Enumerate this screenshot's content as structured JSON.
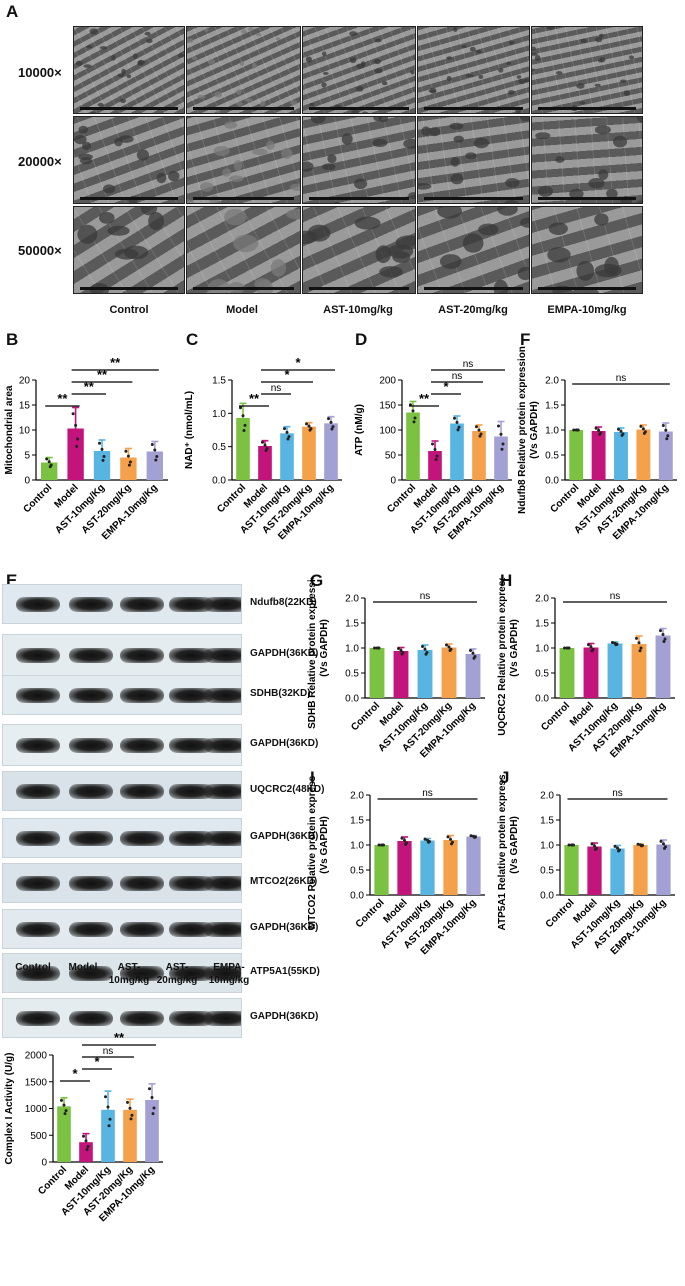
{
  "panelA": {
    "letter": "A",
    "magnifications": [
      "10000×",
      "20000×",
      "50000×"
    ],
    "groups": [
      "Control",
      "Model",
      "AST-10mg/kg",
      "AST-20mg/kg",
      "EMPA-10mg/kg"
    ]
  },
  "panelE": {
    "letter": "E",
    "bands": [
      "Ndufb8(22KD)",
      "GAPDH(36KD)",
      "SDHB(32KD)",
      "GAPDH(36KD)",
      "UQCRC2(48KD)",
      "GAPDH(36KD)",
      "MTCO2(26KD)",
      "GAPDH(36KD)",
      "ATP5A1(55KD)",
      "GAPDH(36KD)"
    ],
    "lanes": [
      "Control",
      "Model",
      "AST-\n10mg/kg",
      "AST-\n20mg/kg",
      "EMPA-\n10mg/kg"
    ]
  },
  "colors": {
    "Control": "#7cc242",
    "Model": "#c2147a",
    "AST-10mg/Kg": "#58b4e0",
    "AST-20mg/Kg": "#f5a04a",
    "EMPA-10mg/Kg": "#a3a0d3"
  },
  "chart_data": [
    {
      "panel": "B",
      "type": "bar",
      "categories": [
        "Control",
        "Model",
        "AST-10mg/Kg",
        "AST-20mg/Kg",
        "EMPA-10mg/Kg"
      ],
      "values": [
        3.5,
        10.3,
        5.8,
        4.5,
        5.7
      ],
      "errors": [
        1.0,
        4.2,
        2.2,
        1.8,
        2.0
      ],
      "ylabel": "Mitochondrial area",
      "ylim": [
        0,
        20
      ],
      "yticks": [
        0,
        5,
        10,
        15,
        20
      ],
      "significance": [
        {
          "from": 0,
          "to": 1,
          "label": "**"
        },
        {
          "from": 1,
          "to": 2,
          "label": "**"
        },
        {
          "from": 1,
          "to": 3,
          "label": "**"
        },
        {
          "from": 1,
          "to": 4,
          "label": "**"
        }
      ]
    },
    {
      "panel": "C",
      "type": "bar",
      "categories": [
        "Control",
        "Model",
        "AST-10mg/Kg",
        "AST-20mg/Kg",
        "EMPA-10mg/Kg"
      ],
      "values": [
        0.93,
        0.51,
        0.7,
        0.8,
        0.85
      ],
      "errors": [
        0.22,
        0.08,
        0.1,
        0.06,
        0.1
      ],
      "ylabel": "NAD⁺ (nmol/mL)",
      "ylim": [
        0,
        1.5
      ],
      "yticks": [
        0.0,
        0.5,
        1.0,
        1.5
      ],
      "significance": [
        {
          "from": 0,
          "to": 1,
          "label": "**"
        },
        {
          "from": 1,
          "to": 2,
          "label": "ns"
        },
        {
          "from": 1,
          "to": 3,
          "label": "*"
        },
        {
          "from": 1,
          "to": 4,
          "label": "*"
        }
      ]
    },
    {
      "panel": "D",
      "type": "bar",
      "categories": [
        "Control",
        "Model",
        "AST-10mg/Kg",
        "AST-20mg/Kg",
        "EMPA-10mg/Kg"
      ],
      "values": [
        135,
        58,
        113,
        98,
        87
      ],
      "errors": [
        22,
        20,
        15,
        12,
        30
      ],
      "ylabel": "ATP (nM/g)",
      "ylim": [
        0,
        200
      ],
      "yticks": [
        0,
        50,
        100,
        150,
        200
      ],
      "significance": [
        {
          "from": 0,
          "to": 1,
          "label": "**"
        },
        {
          "from": 1,
          "to": 2,
          "label": "*"
        },
        {
          "from": 1,
          "to": 3,
          "label": "ns"
        },
        {
          "from": 1,
          "to": 4,
          "label": "ns"
        }
      ]
    },
    {
      "panel": "F",
      "type": "bar",
      "categories": [
        "Control",
        "Model",
        "AST-10mg/Kg",
        "AST-20mg/Kg",
        "EMPA-10mg/Kg"
      ],
      "values": [
        1.0,
        0.98,
        0.96,
        1.01,
        0.97
      ],
      "errors": [
        0.0,
        0.08,
        0.08,
        0.09,
        0.17
      ],
      "ylabel": "Ndufb8 Relative protein expression (Vs GAPDH)",
      "ylim": [
        0,
        2.0
      ],
      "yticks": [
        0.0,
        0.5,
        1.0,
        1.5,
        2.0
      ],
      "significance": [
        {
          "from": 0,
          "to": 4,
          "label": "ns"
        }
      ]
    },
    {
      "panel": "G",
      "type": "bar",
      "categories": [
        "Control",
        "Model",
        "AST-10mg/Kg",
        "AST-20mg/Kg",
        "EMPA-10mg/Kg"
      ],
      "values": [
        1.0,
        0.94,
        0.96,
        1.01,
        0.88
      ],
      "errors": [
        0.0,
        0.07,
        0.1,
        0.07,
        0.1
      ],
      "ylabel": "SDHB Relative protein expression (Vs GAPDH)",
      "ylim": [
        0,
        2.0
      ],
      "yticks": [
        0.0,
        0.5,
        1.0,
        1.5,
        2.0
      ],
      "significance": [
        {
          "from": 0,
          "to": 4,
          "label": "ns"
        }
      ]
    },
    {
      "panel": "H",
      "type": "bar",
      "categories": [
        "Control",
        "Model",
        "AST-10mg/Kg",
        "AST-20mg/Kg",
        "EMPA-10mg/Kg"
      ],
      "values": [
        1.0,
        1.01,
        1.09,
        1.08,
        1.25
      ],
      "errors": [
        0.0,
        0.08,
        0.03,
        0.16,
        0.14
      ],
      "ylabel": "UQCRC2 Relative protein expression (Vs GAPDH)",
      "ylim": [
        0,
        2.0
      ],
      "yticks": [
        0.0,
        0.5,
        1.0,
        1.5,
        2.0
      ],
      "significance": [
        {
          "from": 0,
          "to": 4,
          "label": "ns"
        }
      ]
    },
    {
      "panel": "I",
      "type": "bar",
      "categories": [
        "Control",
        "Model",
        "AST-10mg/Kg",
        "AST-20mg/Kg",
        "EMPA-10mg/Kg"
      ],
      "values": [
        1.0,
        1.08,
        1.09,
        1.1,
        1.17
      ],
      "errors": [
        0.0,
        0.08,
        0.04,
        0.09,
        0.02
      ],
      "ylabel": "MTCO2 Relative protein expression (Vs GAPDH)",
      "ylim": [
        0,
        2.0
      ],
      "yticks": [
        0.0,
        0.5,
        1.0,
        1.5,
        2.0
      ],
      "significance": [
        {
          "from": 0,
          "to": 4,
          "label": "ns"
        }
      ]
    },
    {
      "panel": "J",
      "type": "bar",
      "categories": [
        "Control",
        "Model",
        "AST-10mg/Kg",
        "AST-20mg/Kg",
        "EMPA-10mg/Kg"
      ],
      "values": [
        1.0,
        0.97,
        0.93,
        1.0,
        1.01
      ],
      "errors": [
        0.0,
        0.07,
        0.06,
        0.02,
        0.09
      ],
      "ylabel": "ATP5A1 Relative protein expression (Vs GAPDH)",
      "ylim": [
        0,
        2.0
      ],
      "yticks": [
        0.0,
        0.5,
        1.0,
        1.5,
        2.0
      ],
      "significance": [
        {
          "from": 0,
          "to": 4,
          "label": "ns"
        }
      ]
    },
    {
      "panel": "K",
      "type": "bar",
      "categories": [
        "Control",
        "Model",
        "AST-10mg/Kg",
        "AST-20mg/Kg",
        "EMPA-10mg/Kg"
      ],
      "values": [
        1040,
        370,
        975,
        975,
        1160
      ],
      "errors": [
        160,
        160,
        350,
        200,
        300
      ],
      "ylabel": "Complex I Activity (U/g)",
      "ylim": [
        0,
        2000
      ],
      "yticks": [
        0,
        500,
        1000,
        1500,
        2000
      ],
      "significance": [
        {
          "from": 0,
          "to": 1,
          "label": "*"
        },
        {
          "from": 1,
          "to": 2,
          "label": "*"
        },
        {
          "from": 1,
          "to": 3,
          "label": "ns"
        },
        {
          "from": 1,
          "to": 4,
          "label": "**"
        }
      ]
    }
  ]
}
